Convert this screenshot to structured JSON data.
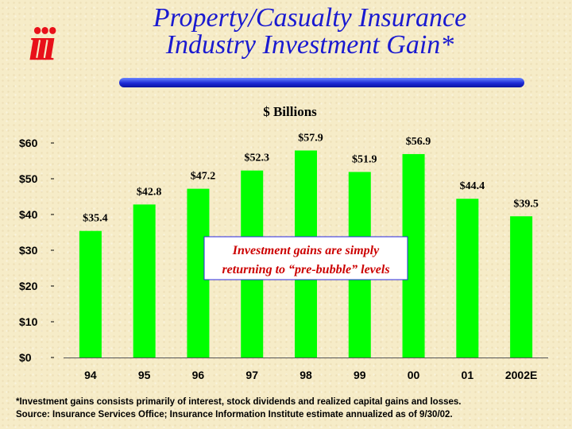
{
  "logo": {
    "text": "iii"
  },
  "title": {
    "line1": "Property/Casualty Insurance",
    "line2": "Industry Investment Gain*"
  },
  "chart_data": {
    "type": "bar",
    "subtitle": "$ Billions",
    "categories": [
      "94",
      "95",
      "96",
      "97",
      "98",
      "99",
      "00",
      "01",
      "2002E"
    ],
    "values": [
      35.4,
      42.8,
      47.2,
      52.3,
      57.9,
      51.9,
      56.9,
      44.4,
      39.5
    ],
    "value_labels": [
      "$35.4",
      "$42.8",
      "$47.2",
      "$52.3",
      "$57.9",
      "$51.9",
      "$56.9",
      "$44.4",
      "$39.5"
    ],
    "ylim": [
      0,
      60
    ],
    "yticks": [
      0,
      10,
      20,
      30,
      40,
      50,
      60
    ],
    "ytick_labels": [
      "$0",
      "$10",
      "$20",
      "$30",
      "$40",
      "$50",
      "$60"
    ],
    "xlabel": "",
    "ylabel": "",
    "grid": false,
    "bar_color": "#00ff00",
    "annotation": {
      "line1": "Investment gains are simply",
      "line2": "returning to “pre-bubble” levels"
    }
  },
  "footnote": {
    "line1": "*Investment gains consists primarily of interest, stock dividends and realized capital gains and losses.",
    "line2": "Source: Insurance Services Office; Insurance Information Institute estimate annualized as of 9/30/02."
  },
  "colors": {
    "title": "#1a1ad0",
    "logo": "#e8101a",
    "annotation_text": "#cc0000",
    "annotation_border": "#2a2ae0"
  }
}
